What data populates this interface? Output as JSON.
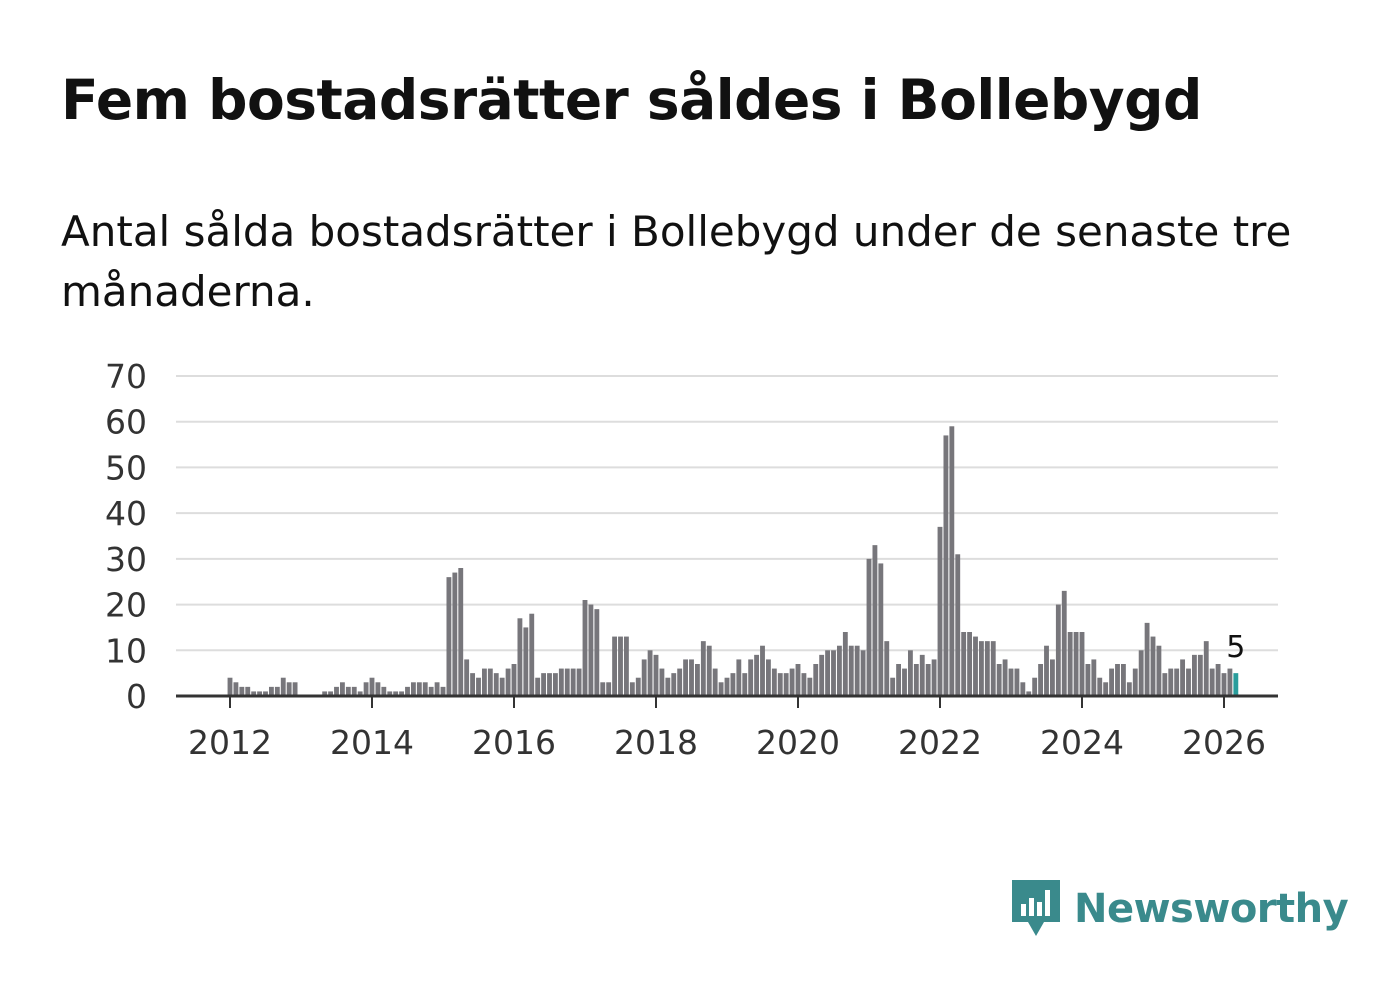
{
  "title": "Fem bostadsrätter såldes i Bollebygd",
  "subtitle": "Antal sålda bostadsrätter i Bollebygd under de senaste tre månaderna.",
  "brand": {
    "name": "Newsworthy",
    "color": "#3a8a8c"
  },
  "colors": {
    "bar": "#77767b",
    "highlight": "#2a9d9c",
    "grid": "#dddddd",
    "axis": "#333333"
  },
  "chart_data": {
    "type": "bar",
    "title": "Fem bostadsrätter såldes i Bollebygd",
    "xlabel": "",
    "ylabel": "",
    "ylim": [
      0,
      70
    ],
    "y_ticks": [
      "0",
      "10",
      "20",
      "30",
      "40",
      "50",
      "60",
      "70"
    ],
    "x_ticks": [
      "2012",
      "2014",
      "2016",
      "2018",
      "2020",
      "2022",
      "2024",
      "2026"
    ],
    "x_start": "2011-08",
    "x_end": "2026-01",
    "series": [
      {
        "name": "Antal sålda bostadsrätter",
        "values": [
          0,
          0,
          0,
          0,
          0,
          4,
          3,
          2,
          2,
          1,
          1,
          1,
          2,
          2,
          4,
          3,
          3,
          0,
          0,
          0,
          0,
          1,
          1,
          2,
          3,
          2,
          2,
          1,
          3,
          4,
          3,
          2,
          1,
          1,
          1,
          2,
          3,
          3,
          3,
          2,
          3,
          2,
          26,
          27,
          28,
          8,
          5,
          4,
          6,
          6,
          5,
          4,
          6,
          7,
          17,
          15,
          18,
          4,
          5,
          5,
          5,
          6,
          6,
          6,
          6,
          21,
          20,
          19,
          3,
          3,
          13,
          13,
          13,
          3,
          4,
          8,
          10,
          9,
          6,
          4,
          5,
          6,
          8,
          8,
          7,
          12,
          11,
          6,
          3,
          4,
          5,
          8,
          5,
          8,
          9,
          11,
          8,
          6,
          5,
          5,
          6,
          7,
          5,
          4,
          7,
          9,
          10,
          10,
          11,
          14,
          11,
          11,
          10,
          30,
          33,
          29,
          12,
          4,
          7,
          6,
          10,
          7,
          9,
          7,
          8,
          37,
          57,
          59,
          31,
          14,
          14,
          13,
          12,
          12,
          12,
          7,
          8,
          6,
          6,
          3,
          1,
          4,
          7,
          11,
          8,
          20,
          23,
          14,
          14,
          14,
          7,
          8,
          4,
          3,
          6,
          7,
          7,
          3,
          6,
          10,
          16,
          13,
          11,
          5,
          6,
          6,
          8,
          6,
          9,
          9,
          12,
          6,
          7,
          5,
          6,
          5
        ]
      }
    ],
    "highlight_last": true,
    "annotation": {
      "label": "5",
      "target": "last"
    }
  }
}
